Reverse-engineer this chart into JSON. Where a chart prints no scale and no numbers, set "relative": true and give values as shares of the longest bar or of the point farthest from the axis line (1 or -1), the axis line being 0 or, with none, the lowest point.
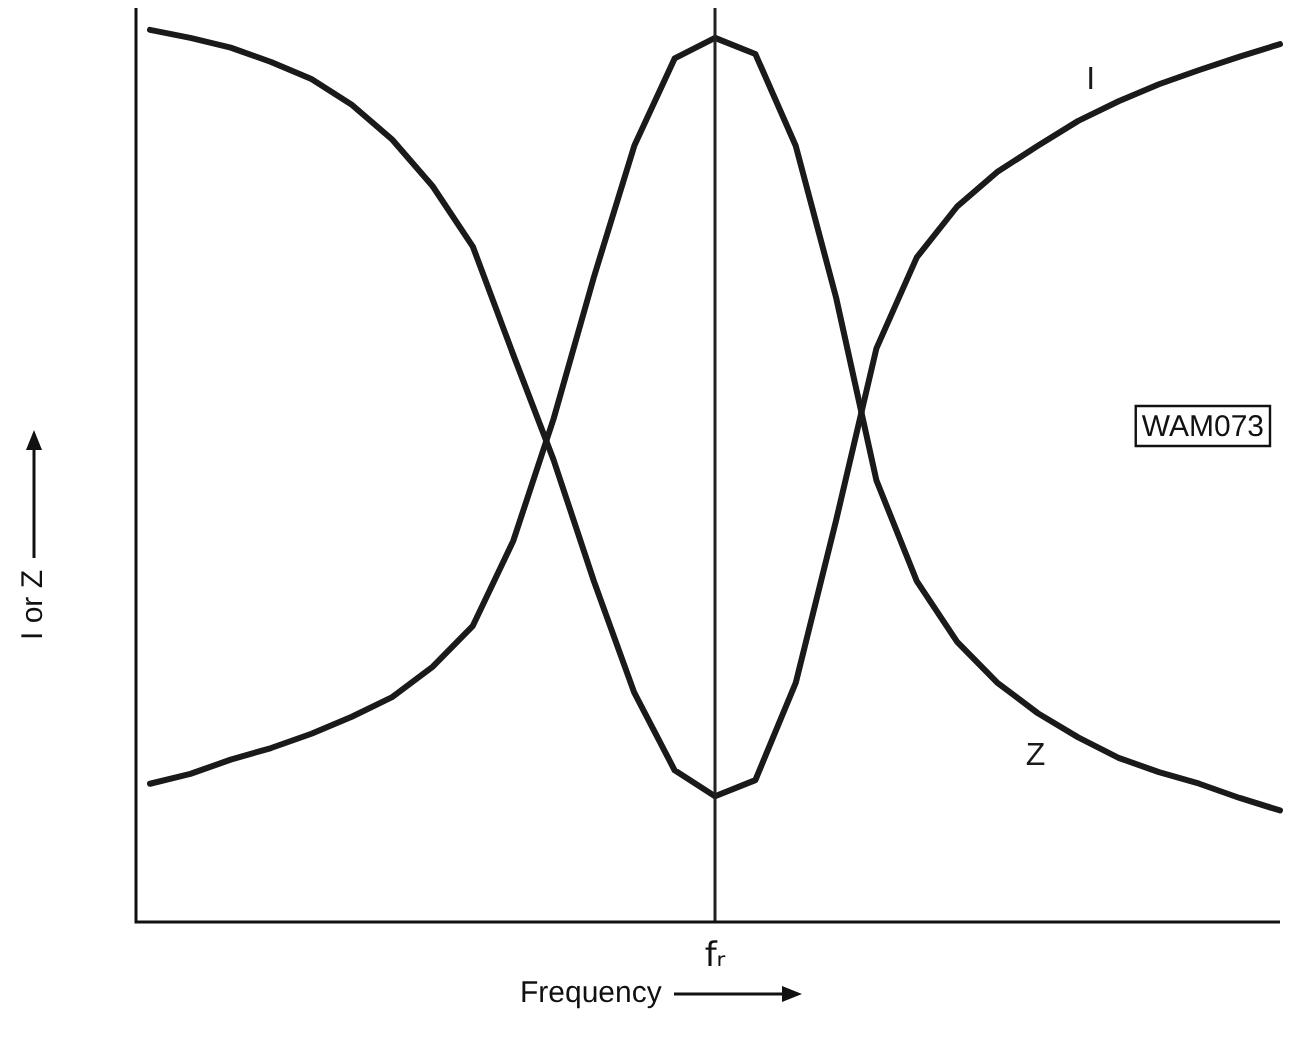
{
  "chart_data": {
    "type": "line",
    "relative": true,
    "xlabel": "Frequency",
    "ylabel": "I or Z",
    "legend": false,
    "grid": false,
    "marker": "none",
    "line_style": "solid",
    "categories": [
      null,
      null,
      null,
      null,
      null,
      null,
      null,
      null,
      null,
      null,
      null,
      null,
      null,
      null,
      null,
      null,
      null,
      null,
      null,
      null,
      null,
      null,
      null,
      null,
      null,
      null,
      null,
      null,
      null
    ],
    "ref_lines": [
      {
        "axis": "x",
        "label": "fᵣ",
        "color": "#222222"
      }
    ],
    "annotations": [
      "WAM073"
    ],
    "series": [
      {
        "name": "I",
        "color": "#1a1a1a",
        "values": [
          1.0,
          0.991,
          0.98,
          0.964,
          0.945,
          0.916,
          0.877,
          0.825,
          0.757,
          0.636,
          0.518,
          0.382,
          0.257,
          0.17,
          0.141,
          0.159,
          0.268,
          0.45,
          0.643,
          0.745,
          0.802,
          0.841,
          0.87,
          0.898,
          0.92,
          0.939,
          0.955,
          0.97,
          0.984
        ]
      },
      {
        "name": "Z",
        "color": "#1a1a1a",
        "values": [
          0.155,
          0.166,
          0.182,
          0.195,
          0.211,
          0.23,
          0.252,
          0.286,
          0.332,
          0.427,
          0.564,
          0.723,
          0.87,
          0.968,
          0.991,
          0.973,
          0.87,
          0.7,
          0.495,
          0.382,
          0.314,
          0.268,
          0.234,
          0.207,
          0.184,
          0.168,
          0.155,
          0.139,
          0.125
        ]
      }
    ]
  }
}
